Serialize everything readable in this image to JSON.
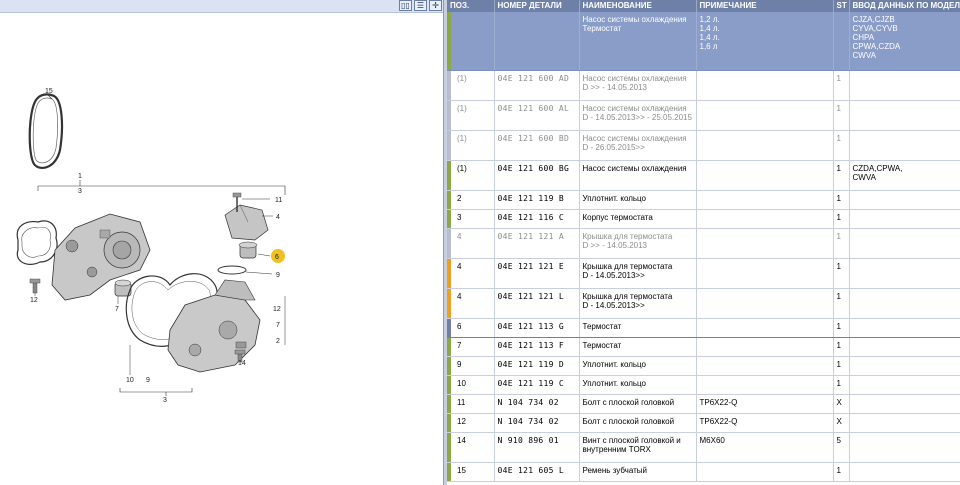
{
  "toolbar": {
    "icons": [
      "split-view-icon",
      "list-view-icon",
      "expand-icon"
    ]
  },
  "columns": {
    "pos": "ПОЗ.",
    "part": "НОМЕР ДЕТАЛИ",
    "name": "НАИМЕНОВАНИЕ",
    "note": "ПРИМЕЧАНИЕ",
    "st": "ST",
    "model": "ВВОД ДАННЫХ ПО МОДЕЛИ"
  },
  "header_row": {
    "name_lines": [
      "Насос системы охлаждения",
      "Термостат"
    ],
    "note_lines": [
      "1,2 л.",
      "",
      "1,4 л.",
      "1,4 л.",
      "1,6 л"
    ],
    "model_lines": [
      "CJZA,CJZB",
      "CYVA,CYVB",
      "CHPA",
      "CPWA,CZDA",
      "CWVA"
    ]
  },
  "rows": [
    {
      "pos": "(1)",
      "part": "04E 121 600 AD",
      "name": [
        "Насос системы охлаждения",
        "D           >> - 14.05.2013"
      ],
      "note": "",
      "st": "1",
      "model": [],
      "style": "gray",
      "marker": "#b8bdd0"
    },
    {
      "pos": "(1)",
      "part": "04E 121 600 AL",
      "name": [
        "Насос системы охлаждения",
        "D - 14.05.2013>> - 25.05.2015"
      ],
      "note": "",
      "st": "1",
      "model": [],
      "style": "gray",
      "marker": "#b8bdd0"
    },
    {
      "pos": "(1)",
      "part": "04E 121 600 BD",
      "name": [
        "Насос системы охлаждения",
        "D - 26.05.2015>>"
      ],
      "note": "",
      "st": "1",
      "model": [],
      "style": "gray",
      "marker": "#b8bdd0"
    },
    {
      "pos": "(1)",
      "part": "04E 121 600 BG",
      "name": [
        "Насос системы охлаждения"
      ],
      "note": "",
      "st": "1",
      "model": [
        "CZDA,CPWA,",
        "CWVA"
      ],
      "style": "normal",
      "marker": "#8aa843"
    },
    {
      "pos": "2",
      "part": "04E 121 119 B",
      "name": [
        "Уплотнит. кольцо"
      ],
      "note": "",
      "st": "1",
      "model": [],
      "style": "normal",
      "marker": "#8aa843"
    },
    {
      "pos": "3",
      "part": "04E 121 116 C",
      "name": [
        "Корпус термостата"
      ],
      "note": "",
      "st": "1",
      "model": [],
      "style": "normal",
      "marker": "#8aa843"
    },
    {
      "pos": "4",
      "part": "04E 121 121 A",
      "name": [
        "Крышка для термостата",
        "D           >> - 14.05.2013"
      ],
      "note": "",
      "st": "1",
      "model": [],
      "style": "gray",
      "marker": "#b8bdd0"
    },
    {
      "pos": "4",
      "part": "04E 121 121 E",
      "name": [
        "Крышка для термостата",
        "D - 14.05.2013>>"
      ],
      "note": "",
      "st": "1",
      "model": [],
      "style": "normal",
      "marker": "#f0a020"
    },
    {
      "pos": "4",
      "part": "04E 121 121 L",
      "name": [
        "Крышка для термостата",
        "D - 14.05.2013>>"
      ],
      "note": "",
      "st": "1",
      "model": [],
      "style": "normal",
      "marker": "#f0a020"
    },
    {
      "pos": "6",
      "part": "04E 121 113 G",
      "name": [
        "Термостат"
      ],
      "note": "",
      "st": "1",
      "model": [],
      "style": "sel",
      "marker": "#6f80a8"
    },
    {
      "pos": "7",
      "part": "04E 121 113 F",
      "name": [
        "Термостат"
      ],
      "note": "",
      "st": "1",
      "model": [],
      "style": "normal",
      "marker": "#8aa843"
    },
    {
      "pos": "9",
      "part": "04E 121 119 D",
      "name": [
        "Уплотнит. кольцо"
      ],
      "note": "",
      "st": "1",
      "model": [],
      "style": "normal",
      "marker": "#8aa843"
    },
    {
      "pos": "10",
      "part": "04E 121 119 C",
      "name": [
        "Уплотнит. кольцо"
      ],
      "note": "",
      "st": "1",
      "model": [],
      "style": "normal",
      "marker": "#8aa843"
    },
    {
      "pos": "11",
      "part": "N  104 734 02",
      "name": [
        "Болт с плоской головкой"
      ],
      "note": "TP6X22-Q",
      "st": "X",
      "model": [],
      "style": "normal",
      "marker": "#8aa843"
    },
    {
      "pos": "12",
      "part": "N  104 734 02",
      "name": [
        "Болт с плоской головкой"
      ],
      "note": "TP6X22-Q",
      "st": "X",
      "model": [],
      "style": "normal",
      "marker": "#8aa843"
    },
    {
      "pos": "14",
      "part": "N  910 896 01",
      "name": [
        "Винт с плоской головкой и",
        "внутренним TORX"
      ],
      "note": "M6X60",
      "st": "5",
      "model": [],
      "style": "normal",
      "marker": "#8aa843"
    },
    {
      "pos": "15",
      "part": "04E 121 605 L",
      "name": [
        "Ремень зубчатый"
      ],
      "note": "",
      "st": "1",
      "model": [],
      "style": "normal",
      "marker": "#8aa843"
    }
  ],
  "diagram": {
    "callouts": [
      "15",
      "1",
      "3",
      "11",
      "4",
      "6",
      "9",
      "12",
      "7",
      "12",
      "7",
      "2",
      "10",
      "14",
      "10",
      "9",
      "3"
    ],
    "highlight_color": "#f0c020"
  }
}
